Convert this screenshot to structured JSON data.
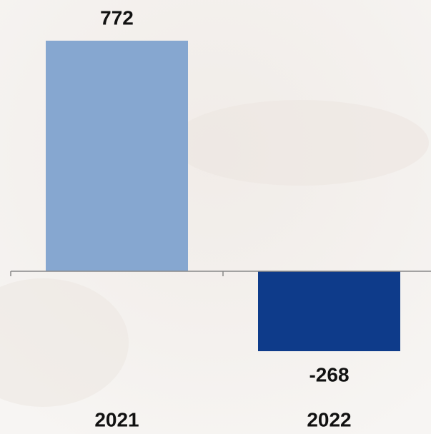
{
  "chart_data": {
    "type": "bar",
    "categories": [
      "2021",
      "2022"
    ],
    "values": [
      772,
      -268
    ],
    "colors": [
      "#86a7d0",
      "#0e3b8a"
    ]
  }
}
